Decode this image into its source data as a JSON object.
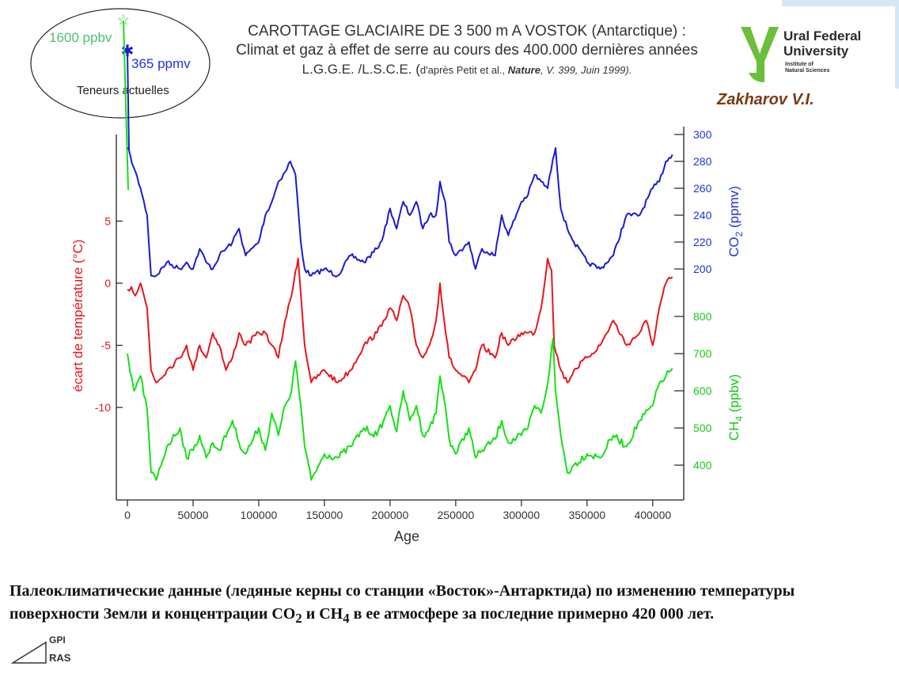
{
  "header": {
    "title_line1": "CAROTTAGE GLACIAIRE DE 3 500 m A VOSTOK (Antarctique) :",
    "title_line2": "Climat et gaz à effet de serre au cours des 400.000 dernières années",
    "title_line3_main": "L.G.G.E. /L.S.C.E. (",
    "title_line3_small": "d'après Petit et al., ",
    "title_line3_journal": "Nature",
    "title_line3_ref": ", V. 399, Juin 1999)."
  },
  "logo": {
    "name_line1": "Ural Federal",
    "name_line2": "University",
    "inst_line1": "Institute of",
    "inst_line2": "Natural Sciences",
    "color": "#6abf3b"
  },
  "author": "Zakharov V.I.",
  "inset": {
    "ch4_label": "1600 ppbv",
    "co2_label": "365 ppmv",
    "caption": "Teneurs actuelles"
  },
  "caption": {
    "text_before": "Палеоклиматические данные (ледяные керны со станции «Восток»-Антарктида) по изменению температуры поверхности Земли и концентрации CO",
    "sub1": "2",
    "mid": " и CH",
    "sub2": "4",
    "text_after": " в ее атмосфере за последние примерно 420 000 лет."
  },
  "footer": {
    "org1": "GPI",
    "org2": "RAS"
  },
  "chart_data": {
    "type": "line",
    "xlabel": "Age",
    "xlim": [
      0,
      420000
    ],
    "xticks": [
      "0",
      "50000",
      "100000",
      "150000",
      "200000",
      "250000",
      "300000",
      "350000",
      "400000"
    ],
    "temp_axis": {
      "label": "écart de température (°C)",
      "range": [
        -17,
        12
      ],
      "ticks": [
        "5",
        "0",
        "-5",
        "-10"
      ]
    },
    "co2_axis": {
      "label": "CO2 (ppmv)",
      "range": [
        180,
        300
      ],
      "ticks": [
        "300",
        "280",
        "260",
        "240",
        "220",
        "200"
      ]
    },
    "ch4_axis": {
      "label": "CH4 (ppbv)",
      "range": [
        320,
        1000
      ],
      "ticks": [
        "800",
        "700",
        "600",
        "500",
        "400"
      ]
    },
    "colors": {
      "co2": "#1a1ad6",
      "temp": "#e8161c",
      "ch4": "#16e016"
    },
    "series": [
      {
        "key": "co2",
        "x": [
          0,
          2000,
          5000,
          10000,
          15000,
          18000,
          22000,
          30000,
          40000,
          45000,
          50000,
          55000,
          60000,
          65000,
          70000,
          80000,
          85000,
          90000,
          100000,
          105000,
          110000,
          115000,
          120000,
          124000,
          128000,
          132000,
          135000,
          140000,
          150000,
          160000,
          170000,
          180000,
          190000,
          195000,
          200000,
          205000,
          210000,
          215000,
          220000,
          225000,
          230000,
          235000,
          238000,
          242000,
          245000,
          250000,
          260000,
          265000,
          270000,
          280000,
          285000,
          290000,
          300000,
          305000,
          310000,
          315000,
          320000,
          324000,
          326000,
          330000,
          335000,
          340000,
          350000,
          360000,
          370000,
          380000,
          390000,
          400000,
          405000,
          410000,
          415000
        ],
        "values": [
          290,
          285,
          275,
          260,
          240,
          195,
          195,
          205,
          200,
          205,
          200,
          215,
          205,
          200,
          210,
          220,
          230,
          210,
          220,
          240,
          250,
          265,
          272,
          280,
          270,
          220,
          200,
          195,
          200,
          195,
          210,
          205,
          215,
          225,
          245,
          230,
          250,
          240,
          250,
          230,
          240,
          240,
          265,
          250,
          220,
          210,
          220,
          200,
          215,
          210,
          240,
          225,
          250,
          255,
          270,
          265,
          260,
          282,
          290,
          245,
          230,
          220,
          205,
          200,
          210,
          240,
          240,
          260,
          265,
          280,
          285
        ]
      },
      {
        "key": "temp",
        "x": [
          0,
          3000,
          6000,
          10000,
          15000,
          18000,
          22000,
          30000,
          40000,
          45000,
          50000,
          55000,
          60000,
          65000,
          70000,
          75000,
          80000,
          85000,
          90000,
          100000,
          105000,
          110000,
          115000,
          120000,
          125000,
          128000,
          130000,
          135000,
          140000,
          150000,
          160000,
          170000,
          180000,
          190000,
          195000,
          200000,
          205000,
          210000,
          215000,
          220000,
          225000,
          230000,
          235000,
          238000,
          240000,
          245000,
          250000,
          260000,
          265000,
          270000,
          280000,
          285000,
          290000,
          300000,
          305000,
          310000,
          315000,
          320000,
          323000,
          325000,
          330000,
          335000,
          340000,
          350000,
          360000,
          370000,
          380000,
          390000,
          395000,
          400000,
          405000,
          410000,
          415000
        ],
        "values": [
          -0.5,
          -0.3,
          -1,
          0,
          -2,
          -7,
          -8,
          -7,
          -6,
          -5,
          -7,
          -5,
          -6,
          -4,
          -5,
          -7,
          -6,
          -4,
          -5,
          -4,
          -4,
          -5,
          -6,
          -3,
          -1,
          1,
          2,
          -5,
          -8,
          -7,
          -8,
          -7,
          -5,
          -4,
          -3,
          -2,
          -3,
          -1,
          -2,
          -5,
          -6,
          -5,
          -3,
          0,
          -2,
          -6,
          -7,
          -8,
          -7,
          -5,
          -6,
          -4,
          -5,
          -4,
          -4,
          -4,
          -2,
          2,
          1,
          -5,
          -7,
          -8,
          -7,
          -6,
          -5,
          -3,
          -5,
          -4,
          -3,
          -5,
          -2,
          0,
          0.5
        ]
      },
      {
        "key": "ch4",
        "x": [
          0,
          2000,
          5000,
          10000,
          15000,
          18000,
          22000,
          30000,
          40000,
          45000,
          50000,
          55000,
          60000,
          65000,
          70000,
          80000,
          85000,
          90000,
          100000,
          105000,
          110000,
          115000,
          120000,
          125000,
          128000,
          132000,
          135000,
          140000,
          150000,
          160000,
          170000,
          180000,
          190000,
          195000,
          200000,
          205000,
          210000,
          215000,
          220000,
          225000,
          230000,
          235000,
          238000,
          242000,
          245000,
          250000,
          260000,
          265000,
          270000,
          280000,
          285000,
          290000,
          300000,
          305000,
          310000,
          315000,
          320000,
          324000,
          326000,
          330000,
          335000,
          340000,
          350000,
          360000,
          370000,
          380000,
          390000,
          400000,
          405000,
          410000,
          415000
        ],
        "values": [
          700,
          650,
          600,
          640,
          550,
          380,
          360,
          450,
          500,
          420,
          440,
          480,
          420,
          460,
          440,
          520,
          460,
          430,
          500,
          440,
          540,
          480,
          560,
          600,
          680,
          560,
          450,
          360,
          430,
          420,
          450,
          500,
          480,
          520,
          560,
          490,
          600,
          520,
          560,
          480,
          500,
          540,
          640,
          560,
          470,
          430,
          500,
          420,
          440,
          470,
          520,
          460,
          480,
          500,
          560,
          540,
          620,
          740,
          600,
          480,
          380,
          400,
          430,
          420,
          480,
          450,
          520,
          560,
          620,
          640,
          660
        ]
      }
    ]
  }
}
